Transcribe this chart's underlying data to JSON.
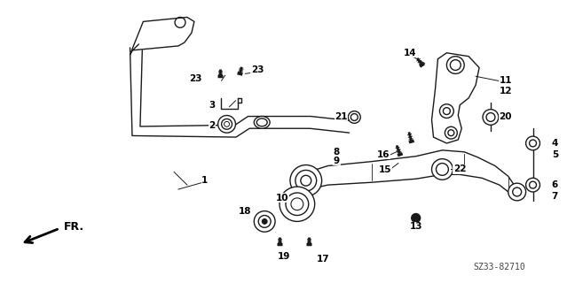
{
  "bg_color": "#ffffff",
  "line_color": "#1a1a1a",
  "fig_width": 6.39,
  "fig_height": 3.2,
  "dpi": 100,
  "diagram_code": "SZ33-82710",
  "fr_label": "FR."
}
